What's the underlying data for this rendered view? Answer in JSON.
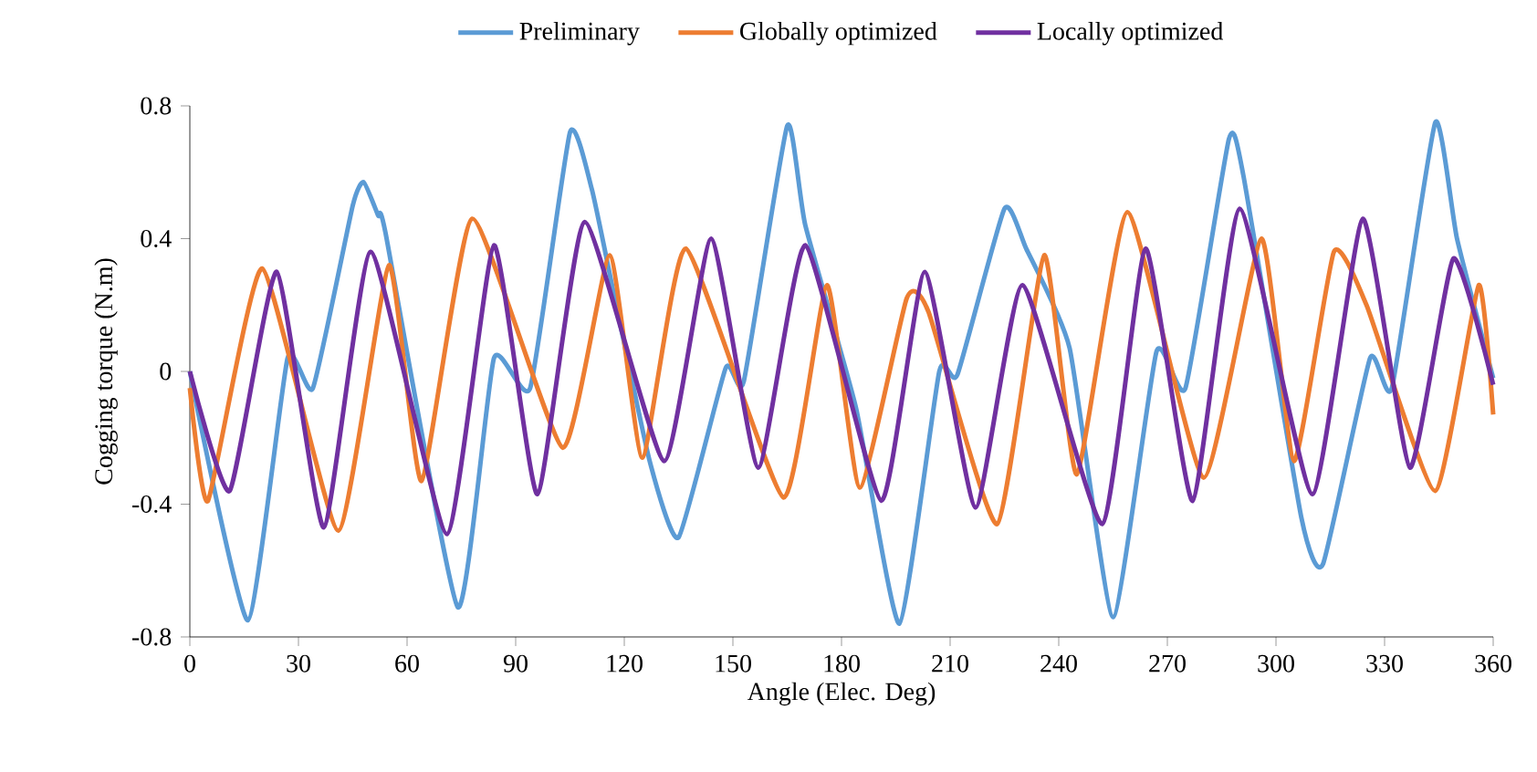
{
  "chart_data": {
    "type": "line",
    "xlabel": "Angle (Elec. Deg)",
    "ylabel": "Cogging torque (N.m)",
    "xlim": [
      0,
      360
    ],
    "xticks": [
      0,
      30,
      60,
      90,
      120,
      150,
      180,
      210,
      240,
      270,
      300,
      330,
      360
    ],
    "ylim": [
      -0.8,
      0.8
    ],
    "yticks": [
      -0.8,
      -0.4,
      0,
      0.4,
      0.8
    ],
    "legend": "top",
    "series": [
      {
        "name": "Preliminary",
        "color": "#5b9bd5",
        "x": [
          0,
          16,
          27,
          34,
          45,
          48,
          52,
          54,
          74,
          84,
          94,
          105,
          111,
          117,
          127,
          135,
          148,
          153,
          165,
          170,
          184,
          196,
          207,
          212,
          225,
          231,
          243,
          255,
          267,
          275,
          287,
          291,
          307,
          313,
          326,
          332,
          344,
          350,
          360
        ],
        "values": [
          0,
          -0.75,
          0.04,
          -0.05,
          0.5,
          0.57,
          0.47,
          0.42,
          -0.71,
          0.04,
          -0.05,
          0.72,
          0.55,
          0.24,
          -0.27,
          -0.5,
          0.01,
          -0.03,
          0.74,
          0.44,
          -0.11,
          -0.76,
          0,
          -0.01,
          0.49,
          0.37,
          0.07,
          -0.74,
          0.06,
          -0.05,
          0.7,
          0.59,
          -0.44,
          -0.58,
          0.04,
          -0.05,
          0.75,
          0.4,
          -0.02
        ]
      },
      {
        "name": "Globally optimized",
        "color": "#ed7d31",
        "x": [
          0,
          5,
          20,
          41,
          55,
          64,
          78,
          103,
          116,
          125,
          137,
          164,
          176,
          185,
          198,
          204,
          223,
          236,
          245,
          259,
          280,
          296,
          305,
          316,
          325,
          344,
          356,
          360
        ],
        "values": [
          -0.05,
          -0.39,
          0.31,
          -0.48,
          0.32,
          -0.33,
          0.46,
          -0.23,
          0.35,
          -0.26,
          0.37,
          -0.38,
          0.26,
          -0.35,
          0.22,
          0.18,
          -0.46,
          0.35,
          -0.31,
          0.48,
          -0.32,
          0.4,
          -0.27,
          0.36,
          0.2,
          -0.36,
          0.26,
          -0.13
        ]
      },
      {
        "name": "Locally optimized",
        "color": "#7030a0",
        "x": [
          0,
          11,
          24,
          37,
          50,
          71,
          84,
          96,
          109,
          131,
          144,
          157,
          170,
          191,
          203,
          217,
          230,
          252,
          264,
          277,
          290,
          310,
          324,
          337,
          349,
          360
        ],
        "values": [
          0,
          -0.36,
          0.3,
          -0.47,
          0.36,
          -0.49,
          0.38,
          -0.37,
          0.45,
          -0.27,
          0.4,
          -0.29,
          0.38,
          -0.39,
          0.3,
          -0.41,
          0.26,
          -0.46,
          0.37,
          -0.39,
          0.49,
          -0.37,
          0.46,
          -0.29,
          0.34,
          -0.04
        ]
      }
    ]
  }
}
